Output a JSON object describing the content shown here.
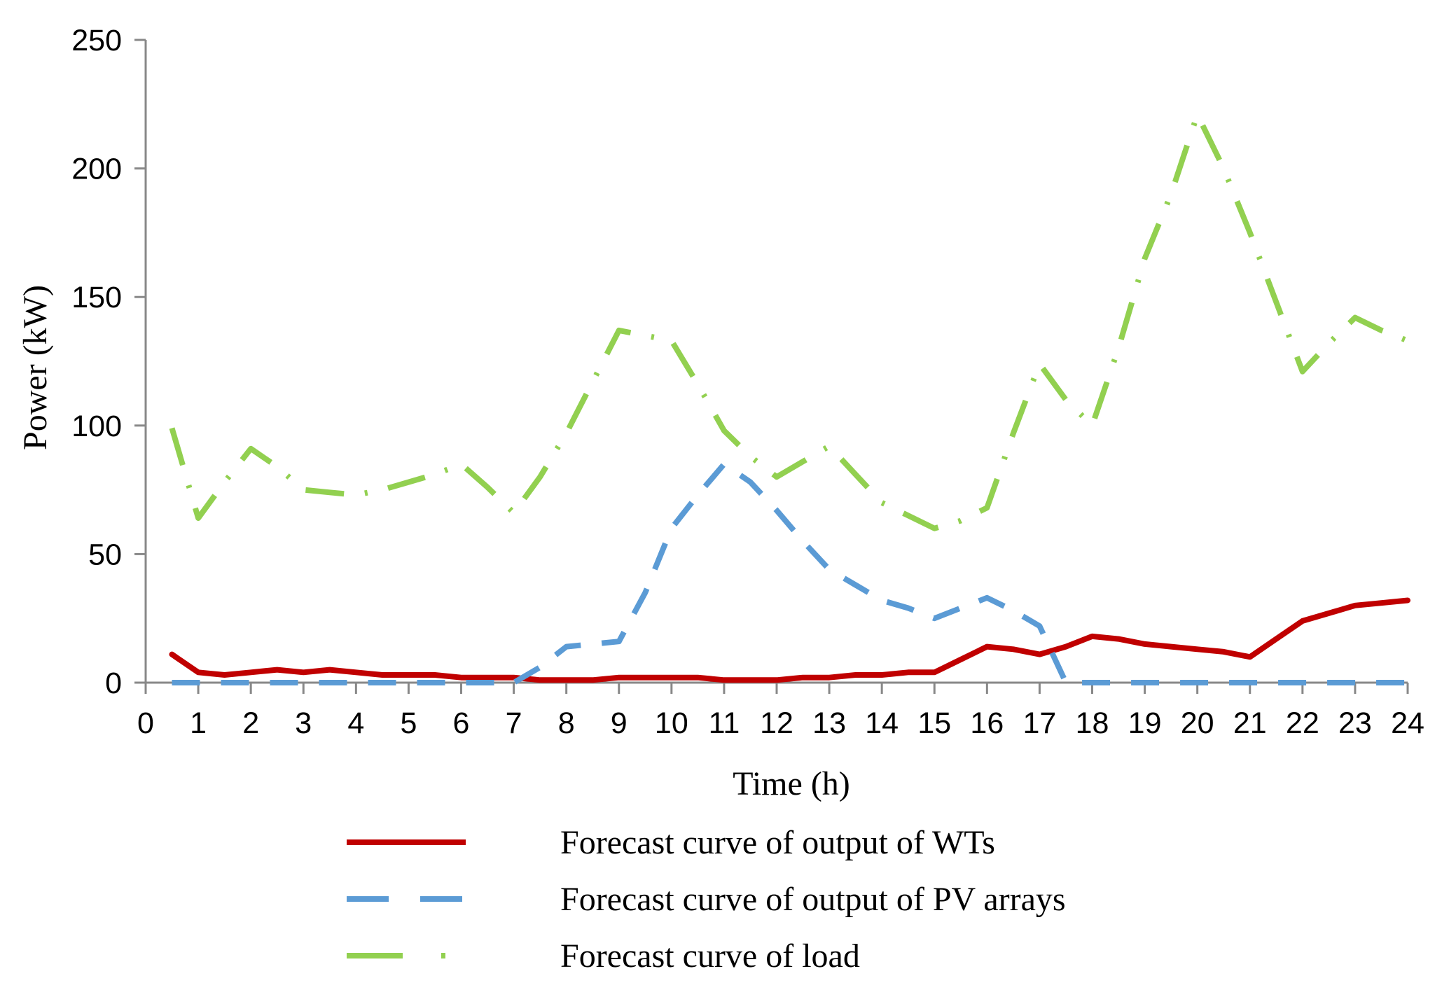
{
  "chart_data": {
    "type": "line",
    "xlabel": "Time (h)",
    "ylabel": "Power (kW)",
    "ylim": [
      0,
      250
    ],
    "xlim": [
      0,
      24
    ],
    "y_ticks": [
      "0",
      "50",
      "100",
      "150",
      "200",
      "250"
    ],
    "x_ticks": [
      "0",
      "1",
      "2",
      "3",
      "4",
      "5",
      "6",
      "7",
      "8",
      "9",
      "10",
      "11",
      "12",
      "13",
      "14",
      "15",
      "16",
      "17",
      "18",
      "19",
      "20",
      "21",
      "22",
      "23",
      "24"
    ],
    "grid": false,
    "legend_position": "bottom",
    "x": [
      0.5,
      1.5,
      2.5,
      3.5,
      4.5,
      5.5,
      6.5,
      7.5,
      8.5,
      9.5,
      10.5,
      11.5,
      12.5,
      13.5,
      14.5,
      15.5,
      16.5,
      17.5,
      18.5,
      19.5,
      20.5,
      21.5,
      22.5,
      23.5,
      24.5
    ],
    "series": [
      {
        "name": "Forecast curve of output of WTs",
        "color": "#c00000",
        "style": "solid",
        "x": [
          0.5,
          1,
          1.5,
          2,
          2.5,
          3,
          3.5,
          4,
          4.5,
          5,
          5.5,
          6,
          6.5,
          7,
          7.5,
          8,
          8.5,
          9,
          9.5,
          10,
          10.5,
          11,
          11.5,
          12,
          12.5,
          13,
          13.5,
          14,
          14.5,
          15,
          15.5,
          16,
          16.5,
          17,
          17.5,
          18,
          18.5,
          19,
          19.5,
          20,
          20.5,
          21,
          21.5,
          22,
          22.5,
          23,
          23.5,
          24
        ],
        "values": [
          11,
          4,
          3,
          4,
          5,
          4,
          5,
          4,
          3,
          3,
          3,
          2,
          2,
          2,
          1,
          1,
          1,
          2,
          2,
          2,
          2,
          1,
          1,
          1,
          2,
          2,
          3,
          3,
          4,
          4,
          9,
          14,
          13,
          11,
          14,
          18,
          17,
          15,
          14,
          13,
          12,
          10,
          17,
          24,
          27,
          30,
          31,
          32
        ]
      },
      {
        "name": "Forecast curve of output of PV arrays",
        "color": "#5b9bd5",
        "style": "dashed",
        "x": [
          0.5,
          1,
          1.5,
          2,
          2.5,
          3,
          3.5,
          4,
          4.5,
          5,
          5.5,
          6,
          6.5,
          7,
          7.5,
          8,
          8.5,
          9,
          9.5,
          10,
          10.5,
          11,
          11.5,
          12,
          12.5,
          13,
          13.5,
          14,
          14.5,
          15,
          15.5,
          16,
          16.5,
          17,
          17.5,
          18,
          18.5,
          19,
          19.5,
          20,
          20.5,
          21,
          21.5,
          22,
          22.5,
          23,
          23.5,
          24
        ],
        "values": [
          0,
          0,
          0,
          0,
          0,
          0,
          0,
          0,
          0,
          0,
          0,
          0,
          0,
          0,
          6,
          14,
          15,
          16,
          35,
          60,
          73,
          85,
          78,
          67,
          55,
          44,
          38,
          32,
          29,
          25,
          29,
          33,
          28,
          22,
          0,
          0,
          0,
          0,
          0,
          0,
          0,
          0,
          0,
          0,
          0,
          0,
          0,
          0
        ]
      },
      {
        "name": "Forecast curve of load",
        "color": "#92d050",
        "style": "dash-dot",
        "x": [
          0.5,
          1,
          1.5,
          2,
          2.5,
          3,
          3.5,
          4,
          4.5,
          5,
          5.5,
          6,
          6.5,
          7,
          7.5,
          8,
          8.5,
          9,
          9.5,
          10,
          10.5,
          11,
          11.5,
          12,
          12.5,
          13,
          13.5,
          14,
          14.5,
          15,
          15.5,
          16,
          16.5,
          17,
          17.5,
          18,
          18.5,
          19,
          19.5,
          20,
          20.5,
          21,
          21.5,
          22,
          22.5,
          23,
          23.5,
          24
        ],
        "values": [
          99,
          64,
          78,
          91,
          84,
          75,
          74,
          73,
          75,
          78,
          81,
          85,
          76,
          66,
          80,
          97,
          117,
          137,
          135,
          133,
          116,
          98,
          88,
          80,
          86,
          92,
          81,
          70,
          65,
          60,
          63,
          68,
          97,
          124,
          110,
          100,
          130,
          165,
          190,
          221,
          200,
          175,
          148,
          121,
          132,
          142,
          137,
          133
        ]
      }
    ]
  }
}
